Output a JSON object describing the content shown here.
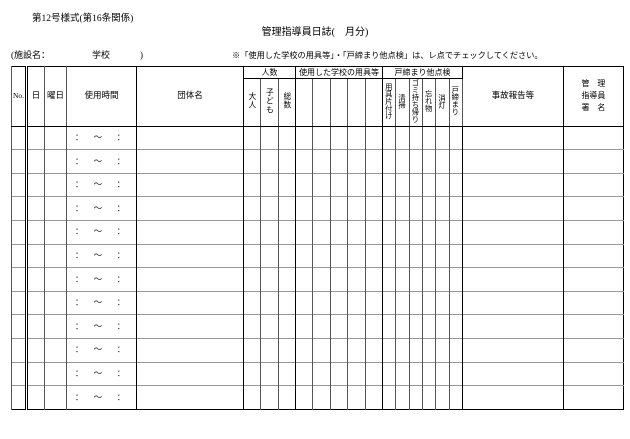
{
  "page": {
    "form_number": "第12号様式(第16条関係)",
    "title": "管理指導員日誌(　月分)",
    "facility": {
      "label": "(施設名：",
      "school": "学校",
      "close_paren": ")"
    },
    "note": "※「使用した学校の用具等」・「戸締まり他点検」は、レ点でチェックしてください。"
  },
  "table": {
    "headers": {
      "no": "No.",
      "day": "日",
      "weekday": "曜日",
      "time": "使用時間",
      "group": "団体名",
      "people": {
        "label": "人数",
        "sub": [
          "大人",
          "子ども",
          "総数"
        ]
      },
      "equipment": {
        "label": "使用した学校の用具等",
        "blank_subcolumns": 5
      },
      "inspection": {
        "label": "戸締まり他点検",
        "sub": [
          "用具片付け",
          "清掃",
          "ゴミ持ち帰り",
          "忘れ物",
          "消灯",
          "戸締まり"
        ]
      },
      "accident": "事故報告等",
      "signature_lines": [
        "管　理",
        "指導員",
        "署　名"
      ]
    },
    "rows": [
      {
        "time": "：　～　："
      },
      {
        "time": "：　～　："
      },
      {
        "time": "：　～　："
      },
      {
        "time": "：　～　："
      },
      {
        "time": "：　～　："
      },
      {
        "time": "：　～　："
      },
      {
        "time": "：　～　："
      },
      {
        "time": "：　～　："
      },
      {
        "time": "：　～　："
      },
      {
        "time": "：　～　："
      },
      {
        "time": "：　～　："
      },
      {
        "time": "：　～　："
      }
    ]
  }
}
